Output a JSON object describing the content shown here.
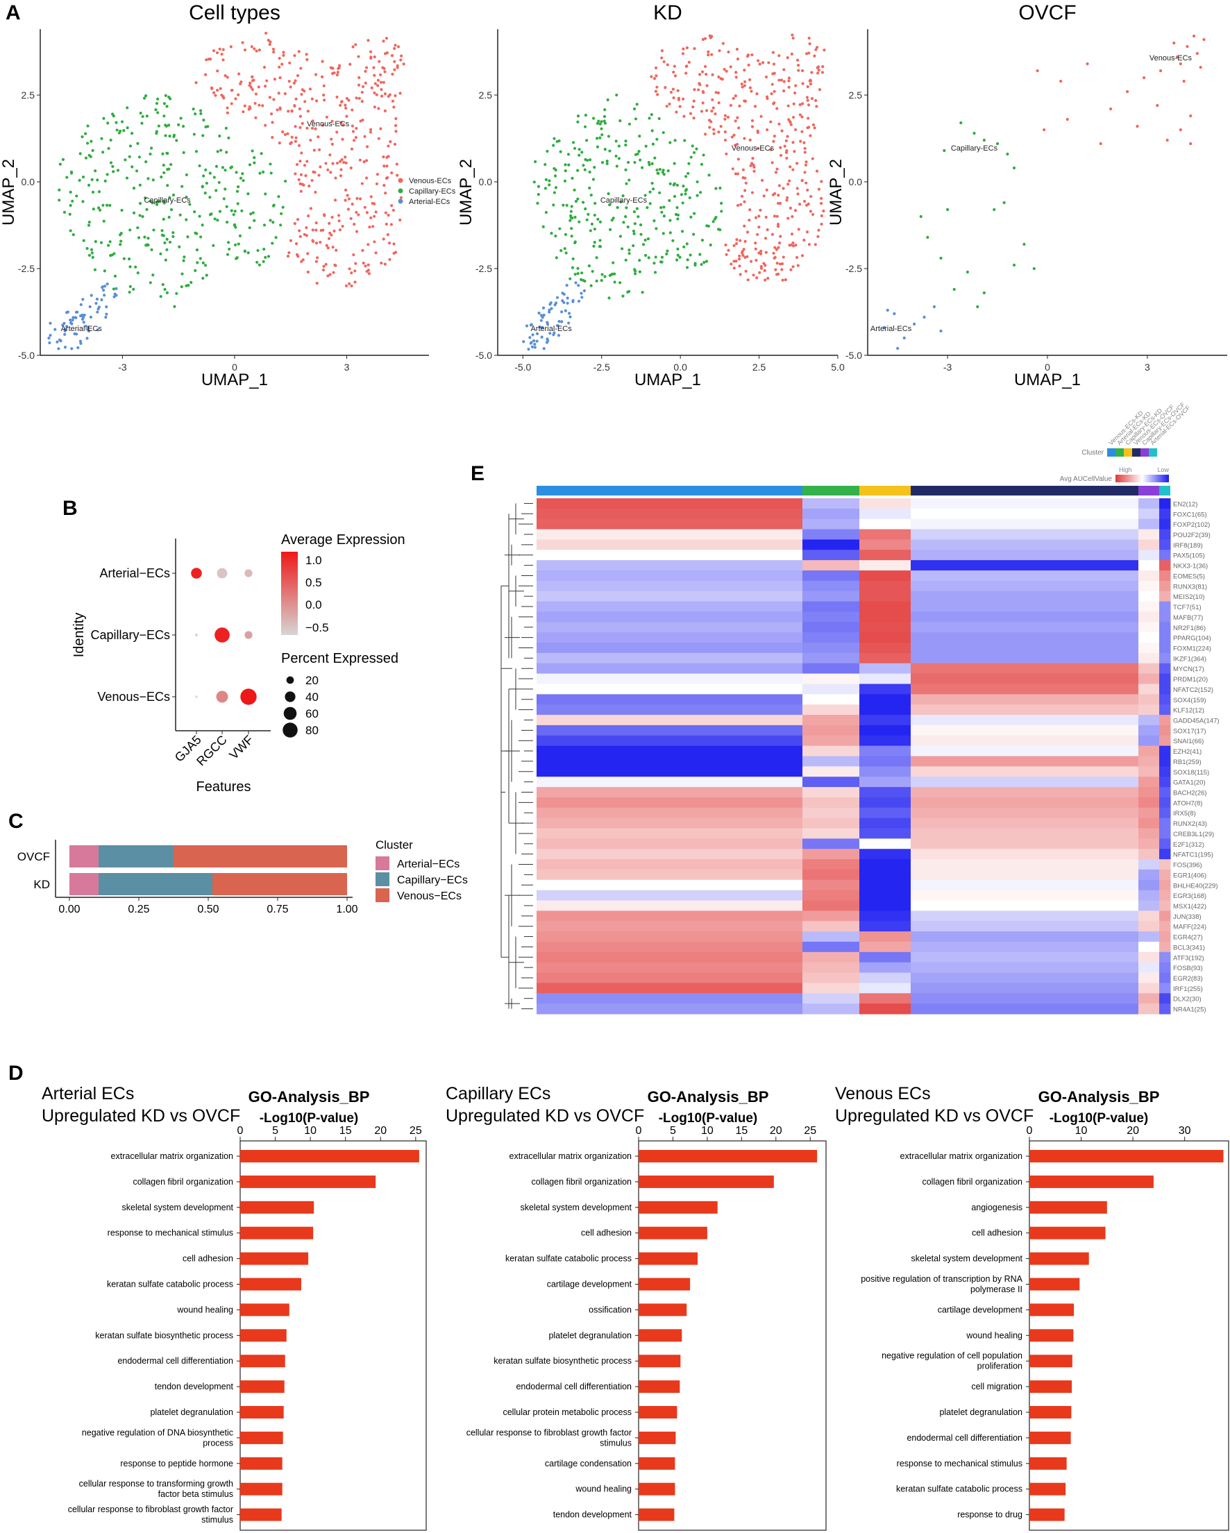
{
  "panels": {
    "A": "A",
    "B": "B",
    "C": "C",
    "D": "D",
    "E": "E"
  },
  "chart_data": [
    {
      "id": "umap",
      "type": "scatter",
      "xlabel": "UMAP_1",
      "ylabel": "UMAP_2",
      "ylim": [
        -5.0,
        4.4
      ],
      "yticks": [
        "2.5",
        "0.0",
        "-2.5",
        "-5.0"
      ],
      "yticks_v": [
        2.5,
        0,
        -2.5,
        -5
      ],
      "legend": [
        {
          "label": "Venous-ECs",
          "color": "#F0665D"
        },
        {
          "label": "Capillary-ECs",
          "color": "#2EAD3F"
        },
        {
          "label": "Arterial-ECs",
          "color": "#5A8FD8"
        }
      ],
      "subplots": [
        {
          "title": "Cell types",
          "xlim": [
            -5.2,
            5.2
          ],
          "xticks": [
            "-3",
            "0",
            "3"
          ],
          "xticks_v": [
            -3,
            0,
            3
          ],
          "n_scale": 1.0,
          "labels": [
            {
              "text": "Venous-ECs",
              "x": 2.5,
              "y": 1.6
            },
            {
              "text": "Capillary-ECs",
              "x": -1.8,
              "y": -0.6
            },
            {
              "text": "Arterial-ECs",
              "x": -4.1,
              "y": -4.3
            }
          ]
        },
        {
          "title": "KD",
          "xlim": [
            -5.8,
            5.0
          ],
          "xticks": [
            "-5.0",
            "-2.5",
            "0.0",
            "2.5",
            "5.0"
          ],
          "xticks_v": [
            -5,
            -2.5,
            0,
            2.5,
            5
          ],
          "n_scale": 0.95,
          "labels": [
            {
              "text": "Venous-ECs",
              "x": 2.3,
              "y": 0.9
            },
            {
              "text": "Capillary-ECs",
              "x": -1.8,
              "y": -0.6
            },
            {
              "text": "Arterial-ECs",
              "x": -4.1,
              "y": -4.3
            }
          ]
        },
        {
          "title": "OVCF",
          "xlim": [
            -5.4,
            5.4
          ],
          "xticks": [
            "-3",
            "0",
            "3"
          ],
          "xticks_v": [
            -3,
            0,
            3
          ],
          "n_scale": 0.07,
          "labels": [
            {
              "text": "Venous-ECs",
              "x": 3.7,
              "y": 3.5
            },
            {
              "text": "Capillary-ECs",
              "x": -2.2,
              "y": 0.9
            },
            {
              "text": "Arterial-ECs",
              "x": -4.7,
              "y": -4.3
            }
          ]
        }
      ]
    },
    {
      "id": "dotplot",
      "type": "scatter",
      "identities": [
        "Arterial−ECs",
        "Capillary−ECs",
        "Venous−ECs"
      ],
      "features": [
        "GJA5",
        "RGCC",
        "VWF"
      ],
      "xlabel": "Features",
      "ylabel": "Identity",
      "avg_expression": [
        [
          1.2,
          -0.6,
          -0.5
        ],
        [
          -0.8,
          1.2,
          -0.2
        ],
        [
          -0.8,
          0.1,
          1.3
        ]
      ],
      "pct_expressed": [
        [
          42,
          38,
          22
        ],
        [
          3,
          82,
          22
        ],
        [
          2,
          50,
          95
        ]
      ],
      "color_title": "Average Expression",
      "color_ticks": [
        "1.0",
        "0.5",
        "0.0",
        "−0.5"
      ],
      "size_title": "Percent Expressed",
      "size_ticks": [
        "20",
        "40",
        "60",
        "80"
      ],
      "size_ticks_v": [
        20,
        40,
        60,
        80
      ]
    },
    {
      "id": "proportion",
      "type": "bar",
      "stacked": true,
      "categories": [
        "OVCF",
        "KD"
      ],
      "series": [
        {
          "name": "Arterial−ECs",
          "color": "#D6799A",
          "values": [
            0.105,
            0.105
          ]
        },
        {
          "name": "Capillary−ECs",
          "color": "#5B8FA3",
          "values": [
            0.27,
            0.41
          ]
        },
        {
          "name": "Venous−ECs",
          "color": "#D96450",
          "values": [
            0.625,
            0.485
          ]
        }
      ],
      "xticks": [
        "0.00",
        "0.25",
        "0.50",
        "0.75",
        "1.00"
      ],
      "xticks_v": [
        0,
        0.25,
        0.5,
        0.75,
        1.0
      ],
      "legend_title": "Cluster"
    },
    {
      "id": "go_bp",
      "type": "bar",
      "orientation": "horizontal",
      "title": "GO-Analysis_BP",
      "xlabel": "-Log10(P-value)",
      "panels": [
        {
          "title": [
            "Arterial ECs",
            "Upregulated KD vs OVCF"
          ],
          "xlim": [
            0,
            26.5
          ],
          "xticks": [
            "0",
            "5",
            "10",
            "15",
            "20",
            "25"
          ],
          "xticks_v": [
            0,
            5,
            10,
            15,
            20,
            25
          ],
          "categories": [
            "extracellular matrix organization",
            "collagen fibril organization",
            "skeletal system development",
            "response to mechanical stimulus",
            "cell adhesion",
            "keratan sulfate catabolic process",
            "wound healing",
            "keratan sulfate biosynthetic process",
            "endodermal cell differentiation",
            "tendon development",
            "platelet degranulation",
            "negative regulation of DNA biosynthetic process",
            "response to peptide hormone",
            "cellular response to transforming growth factor beta stimulus",
            "cellular response to fibroblast growth factor stimulus"
          ],
          "values": [
            25.5,
            19.3,
            10.5,
            10.4,
            9.7,
            8.7,
            7.0,
            6.6,
            6.4,
            6.3,
            6.2,
            6.1,
            6.0,
            6.0,
            5.9
          ]
        },
        {
          "title": [
            "Capillary ECs",
            "Upregulated KD vs OVCF"
          ],
          "xlim": [
            0,
            27.3
          ],
          "xticks": [
            "0",
            "5",
            "10",
            "15",
            "20",
            "25"
          ],
          "xticks_v": [
            0,
            5,
            10,
            15,
            20,
            25
          ],
          "categories": [
            "extracellular matrix organization",
            "collagen fibril organization",
            "skeletal system development",
            "cell adhesion",
            "keratan sulfate catabolic process",
            "cartilage development",
            "ossification",
            "platelet degranulation",
            "keratan sulfate biosynthetic process",
            "endodermal cell differentiation",
            "cellular protein metabolic process",
            "cellular response to fibroblast growth factor stimulus",
            "cartilage condensation",
            "wound healing",
            "tendon development"
          ],
          "values": [
            26.0,
            19.7,
            11.5,
            10.0,
            8.6,
            7.5,
            7.0,
            6.3,
            6.1,
            6.0,
            5.6,
            5.4,
            5.3,
            5.3,
            5.2
          ]
        },
        {
          "title": [
            "Venous ECs",
            "Upregulated KD vs OVCF"
          ],
          "xlim": [
            0,
            38.5
          ],
          "xticks": [
            "0",
            "10",
            "20",
            "30"
          ],
          "xticks_v": [
            0,
            10,
            20,
            30
          ],
          "categories": [
            "extracellular matrix organization",
            "collagen fibril organization",
            "angiogenesis",
            "cell adhesion",
            "skeletal system development",
            "positive regulation of transcription by RNA polymerase II",
            "cartilage development",
            "wound healing",
            "negative regulation of cell population proliferation",
            "cell migration",
            "platelet degranulation",
            "endodermal cell differentiation",
            "response to mechanical stimulus",
            "keratan sulfate catabolic process",
            "response to drug"
          ],
          "values": [
            37.5,
            24.0,
            15.0,
            14.7,
            11.5,
            9.7,
            8.6,
            8.5,
            8.3,
            8.2,
            8.1,
            8.0,
            7.2,
            7.0,
            6.8
          ]
        }
      ]
    },
    {
      "id": "auc_heatmap",
      "type": "heatmap",
      "genes": [
        "EN2(12)",
        "FOXC1(65)",
        "FOXP2(102)",
        "POU2F2(39)",
        "IRF8(189)",
        "PAX5(105)",
        "NKX3-1(36)",
        "EOMES(5)",
        "RUNX3(81)",
        "MEIS2(10)",
        "TCF7(51)",
        "MAFB(77)",
        "NR2F1(86)",
        "PPARG(104)",
        "FOXM1(224)",
        "IKZF1(364)",
        "MYCN(17)",
        "PRDM1(20)",
        "NFATC2(152)",
        "SOX4(159)",
        "KLF12(12)",
        "GADD45A(147)",
        "SOX17(17)",
        "SNAI1(66)",
        "EZH2(41)",
        "RB1(259)",
        "SOX18(115)",
        "GATA1(20)",
        "BACH2(26)",
        "ATOH7(8)",
        "IRX5(8)",
        "RUNX2(43)",
        "CREB3L1(29)",
        "E2F1(312)",
        "NFATC1(195)",
        "FOS(396)",
        "EGR1(406)",
        "BHLHE40(229)",
        "EGR3(168)",
        "MSX1(422)",
        "JUN(338)",
        "MAFF(224)",
        "EGR4(27)",
        "BCL3(341)",
        "ATF3(192)",
        "FOSB(93)",
        "EGR2(83)",
        "IRF1(255)",
        "DLX2(30)",
        "NR4A1(25)"
      ],
      "clusters": [
        "Venous-ECs-KD",
        "Arterial-ECs-KD",
        "Capillary-ECs-KD",
        "Venous-ECs-OVCF",
        "Capillary-ECs-OVCF",
        "Arterial-ECs-OVCF"
      ],
      "cluster_colors": [
        "#2A8FE0",
        "#33B24A",
        "#F5C21B",
        "#222A66",
        "#8A3FD8",
        "#22C0C8"
      ],
      "cluster_label": "Cluster",
      "scale_label": "Avg AUCellValue",
      "scale_high": "High",
      "scale_low": "Low",
      "values": [
        [
          0.85,
          -0.3,
          0.15,
          -0.05,
          -0.3,
          -0.95
        ],
        [
          0.82,
          -0.4,
          -0.1,
          0.0,
          -0.2,
          -0.85
        ],
        [
          0.8,
          -0.35,
          0.0,
          -0.05,
          -0.3,
          -0.9
        ],
        [
          0.1,
          -0.55,
          0.7,
          -0.2,
          0.1,
          -0.8
        ],
        [
          0.2,
          -0.95,
          0.6,
          -0.3,
          0.2,
          -0.75
        ],
        [
          0.0,
          -0.7,
          0.8,
          -0.35,
          -0.1,
          -0.6
        ],
        [
          -0.3,
          0.35,
          0.1,
          -0.9,
          0.0,
          0.8
        ],
        [
          -0.35,
          -0.6,
          0.9,
          -0.3,
          0.1,
          0.6
        ],
        [
          -0.3,
          -0.5,
          0.85,
          -0.35,
          0.05,
          0.5
        ],
        [
          -0.25,
          -0.45,
          0.85,
          -0.4,
          0.0,
          0.4
        ],
        [
          -0.35,
          -0.6,
          0.9,
          -0.4,
          0.05,
          -0.5
        ],
        [
          -0.4,
          -0.55,
          0.9,
          -0.45,
          0.1,
          -0.5
        ],
        [
          -0.35,
          -0.6,
          0.88,
          -0.4,
          0.05,
          -0.55
        ],
        [
          -0.4,
          -0.55,
          0.9,
          -0.45,
          0.0,
          -0.55
        ],
        [
          -0.45,
          -0.5,
          0.85,
          -0.45,
          0.05,
          -0.55
        ],
        [
          -0.3,
          -0.45,
          0.8,
          -0.45,
          0.1,
          -0.5
        ],
        [
          -0.4,
          -0.6,
          -0.3,
          0.7,
          0.3,
          -0.7
        ],
        [
          -0.05,
          0.05,
          -0.1,
          0.75,
          0.4,
          -0.8
        ],
        [
          0.0,
          -0.1,
          -0.85,
          0.7,
          0.2,
          -0.8
        ],
        [
          -0.6,
          0.0,
          -0.95,
          0.4,
          0.3,
          -0.75
        ],
        [
          -0.55,
          0.2,
          -0.95,
          0.3,
          0.25,
          -0.7
        ],
        [
          0.2,
          0.45,
          -0.85,
          -0.1,
          -0.3,
          0.5
        ],
        [
          -0.65,
          0.5,
          -0.95,
          0.05,
          -0.4,
          0.55
        ],
        [
          -0.8,
          0.45,
          -0.9,
          0.1,
          -0.45,
          0.5
        ],
        [
          -0.95,
          0.2,
          -0.55,
          -0.05,
          0.45,
          -0.9
        ],
        [
          -0.95,
          -0.3,
          -0.6,
          0.5,
          0.4,
          -0.9
        ],
        [
          -0.95,
          0.1,
          -0.5,
          0.2,
          0.35,
          -0.85
        ],
        [
          -0.05,
          -0.7,
          -0.4,
          -0.2,
          0.5,
          -0.8
        ],
        [
          0.45,
          0.2,
          -0.75,
          0.4,
          0.55,
          -0.7
        ],
        [
          0.55,
          0.3,
          -0.8,
          0.45,
          0.6,
          -0.75
        ],
        [
          0.45,
          0.25,
          -0.7,
          0.4,
          0.5,
          -0.7
        ],
        [
          0.4,
          0.3,
          -0.8,
          0.35,
          0.55,
          -0.6
        ],
        [
          0.3,
          0.2,
          -0.75,
          0.3,
          0.45,
          -0.6
        ],
        [
          0.35,
          -0.6,
          0.0,
          0.3,
          0.4,
          -0.7
        ],
        [
          0.25,
          0.5,
          -0.9,
          0.15,
          0.3,
          -0.85
        ],
        [
          0.35,
          0.65,
          -0.95,
          0.1,
          -0.2,
          0.3
        ],
        [
          0.3,
          0.7,
          -0.95,
          0.1,
          -0.4,
          0.4
        ],
        [
          0.0,
          0.6,
          -0.95,
          -0.05,
          -0.45,
          0.45
        ],
        [
          -0.2,
          0.65,
          -0.95,
          0.05,
          -0.35,
          0.4
        ],
        [
          0.1,
          0.7,
          -0.95,
          0.0,
          -0.3,
          0.35
        ],
        [
          0.55,
          0.5,
          -0.9,
          -0.2,
          0.2,
          0.5
        ],
        [
          0.5,
          0.3,
          -0.85,
          -0.25,
          0.25,
          0.4
        ],
        [
          0.55,
          -0.3,
          0.55,
          -0.4,
          -0.3,
          0.45
        ],
        [
          0.6,
          -0.6,
          0.45,
          -0.35,
          0.0,
          0.4
        ],
        [
          0.65,
          0.4,
          -0.6,
          -0.3,
          0.15,
          -0.5
        ],
        [
          0.6,
          0.35,
          -0.4,
          -0.35,
          -0.1,
          -0.55
        ],
        [
          0.65,
          0.3,
          -0.2,
          -0.4,
          0.1,
          -0.6
        ],
        [
          0.8,
          0.2,
          -0.1,
          -0.45,
          0.2,
          -0.5
        ],
        [
          -0.5,
          -0.2,
          0.7,
          -0.5,
          0.4,
          -0.8
        ],
        [
          -0.45,
          -0.3,
          0.9,
          -0.55,
          0.3,
          -0.7
        ]
      ]
    }
  ]
}
